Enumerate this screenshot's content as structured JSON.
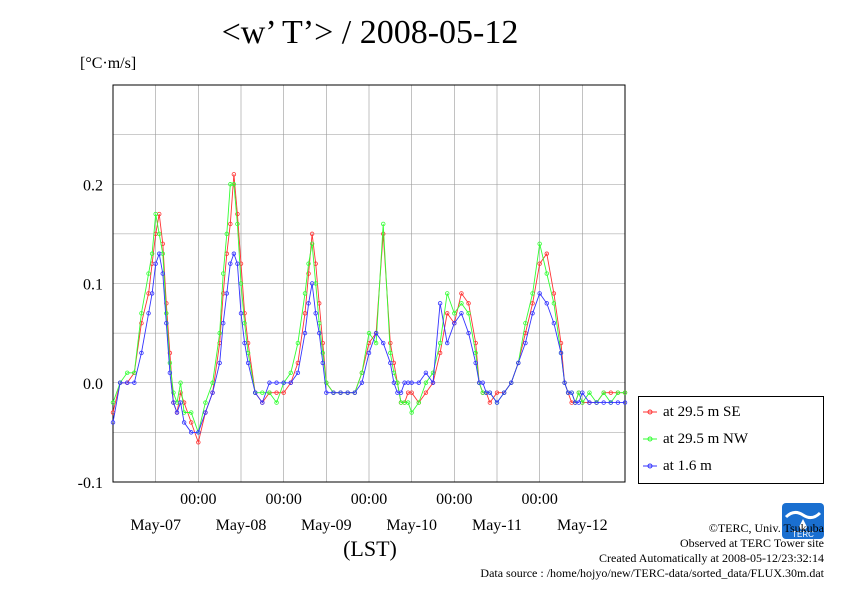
{
  "title": "<w’ T’> / 2008-05-12",
  "unit_label": "[°C·m/s]",
  "xlabel": "(LST)",
  "colors": {
    "se": "#ff3333",
    "nw": "#33ff33",
    "low": "#3333ff",
    "grid": "#999999"
  },
  "legend": [
    {
      "key": "se",
      "label": "at 29.5 m SE"
    },
    {
      "key": "nw",
      "label": "at 29.5 m NW"
    },
    {
      "key": "low",
      "label": "at 1.6 m"
    }
  ],
  "credits": {
    "copyright": "©TERC, Univ. Tsukuba",
    "observed": "Observed at TERC Tower site",
    "created": "Created Automatically at 2008-05-12/23:32:14",
    "source": "Data source : /home/hojyo/new/TERC-data/sorted_data/FLUX.30m.dat"
  },
  "logo_text": "TERC",
  "chart_data": {
    "type": "line",
    "ylim": [
      -0.1,
      0.3
    ],
    "yticks": [
      -0.1,
      0.0,
      0.1,
      0.2
    ],
    "ytick_labels": [
      "-0.1",
      "0.0",
      "0.1",
      "0.2"
    ],
    "xlim_hours": [
      0,
      144
    ],
    "x_tick_labels": [
      "00:00",
      "00:00",
      "00:00",
      "00:00",
      "00:00"
    ],
    "x_date_labels": [
      "May-07",
      "May-08",
      "May-09",
      "May-10",
      "May-11",
      "May-12"
    ],
    "series": [
      {
        "name": "at 29.5 m SE",
        "key": "se",
        "x": [
          0,
          2,
          4,
          6,
          8,
          10,
          11,
          12,
          13,
          14,
          15,
          16,
          17,
          18,
          19,
          20,
          22,
          24,
          26,
          28,
          30,
          31,
          32,
          33,
          34,
          35,
          36,
          37,
          38,
          40,
          42,
          44,
          46,
          48,
          50,
          52,
          54,
          55,
          56,
          57,
          58,
          59,
          60,
          62,
          64,
          66,
          68,
          70,
          72,
          74,
          76,
          78,
          79,
          80,
          81,
          82,
          83,
          84,
          86,
          88,
          90,
          92,
          94,
          96,
          98,
          100,
          102,
          103,
          104,
          105,
          106,
          108,
          110,
          112,
          114,
          116,
          118,
          120,
          122,
          124,
          126,
          127,
          128,
          129,
          130,
          131,
          132,
          134,
          136,
          138,
          140,
          142,
          144
        ],
        "y": [
          -0.03,
          0.0,
          0.0,
          0.01,
          0.06,
          0.09,
          0.12,
          0.15,
          0.17,
          0.14,
          0.08,
          0.03,
          -0.02,
          -0.03,
          -0.01,
          -0.02,
          -0.04,
          -0.06,
          -0.03,
          -0.01,
          0.04,
          0.09,
          0.13,
          0.16,
          0.21,
          0.17,
          0.12,
          0.07,
          0.04,
          -0.01,
          -0.02,
          -0.01,
          -0.01,
          -0.01,
          0.0,
          0.02,
          0.07,
          0.11,
          0.15,
          0.12,
          0.08,
          0.04,
          0.0,
          -0.01,
          -0.01,
          -0.01,
          -0.01,
          0.01,
          0.04,
          0.05,
          0.15,
          0.04,
          0.02,
          0.0,
          -0.02,
          -0.02,
          -0.01,
          -0.01,
          -0.02,
          -0.01,
          0.0,
          0.03,
          0.07,
          0.06,
          0.09,
          0.08,
          0.04,
          0.0,
          -0.01,
          -0.01,
          -0.02,
          -0.01,
          -0.01,
          0.0,
          0.02,
          0.05,
          0.08,
          0.12,
          0.13,
          0.09,
          0.04,
          0.0,
          -0.01,
          -0.02,
          -0.02,
          -0.01,
          -0.02,
          -0.02,
          -0.02,
          -0.01,
          -0.01,
          -0.01,
          -0.01
        ]
      },
      {
        "name": "at 29.5 m NW",
        "key": "nw",
        "x": [
          0,
          2,
          4,
          6,
          8,
          10,
          11,
          12,
          13,
          14,
          15,
          16,
          17,
          18,
          19,
          20,
          22,
          24,
          26,
          28,
          30,
          31,
          32,
          33,
          34,
          35,
          36,
          37,
          38,
          40,
          42,
          44,
          46,
          48,
          50,
          52,
          54,
          55,
          56,
          57,
          58,
          59,
          60,
          62,
          64,
          66,
          68,
          70,
          72,
          74,
          76,
          78,
          79,
          80,
          81,
          82,
          83,
          84,
          86,
          88,
          90,
          92,
          94,
          96,
          98,
          100,
          102,
          103,
          104,
          105,
          106,
          108,
          110,
          112,
          114,
          116,
          118,
          120,
          122,
          124,
          126,
          127,
          128,
          129,
          130,
          131,
          132,
          134,
          136,
          138,
          140,
          142,
          144
        ],
        "y": [
          -0.02,
          0.0,
          0.01,
          0.01,
          0.07,
          0.11,
          0.13,
          0.17,
          0.15,
          0.13,
          0.07,
          0.02,
          -0.01,
          -0.02,
          0.0,
          -0.03,
          -0.03,
          -0.05,
          -0.02,
          0.0,
          0.05,
          0.11,
          0.15,
          0.2,
          0.2,
          0.16,
          0.1,
          0.06,
          0.03,
          -0.01,
          -0.01,
          -0.01,
          -0.02,
          0.0,
          0.01,
          0.04,
          0.09,
          0.12,
          0.14,
          0.1,
          0.06,
          0.03,
          0.0,
          -0.01,
          -0.01,
          -0.01,
          -0.01,
          0.01,
          0.05,
          0.04,
          0.16,
          0.03,
          0.01,
          0.0,
          -0.02,
          -0.02,
          -0.02,
          -0.03,
          -0.02,
          0.0,
          0.01,
          0.04,
          0.09,
          0.07,
          0.08,
          0.07,
          0.03,
          0.0,
          -0.01,
          -0.01,
          -0.01,
          -0.02,
          -0.01,
          0.0,
          0.02,
          0.06,
          0.09,
          0.14,
          0.11,
          0.08,
          0.03,
          0.0,
          -0.01,
          -0.01,
          -0.02,
          -0.01,
          -0.02,
          -0.01,
          -0.02,
          -0.01,
          -0.02,
          -0.01,
          -0.01
        ]
      },
      {
        "name": "at 1.6 m",
        "key": "low",
        "x": [
          0,
          2,
          4,
          6,
          8,
          10,
          11,
          12,
          13,
          14,
          15,
          16,
          17,
          18,
          19,
          20,
          22,
          24,
          26,
          28,
          30,
          31,
          32,
          33,
          34,
          35,
          36,
          37,
          38,
          40,
          42,
          44,
          46,
          48,
          50,
          52,
          54,
          55,
          56,
          57,
          58,
          59,
          60,
          62,
          64,
          66,
          68,
          70,
          72,
          74,
          76,
          78,
          79,
          80,
          81,
          82,
          83,
          84,
          86,
          88,
          90,
          92,
          94,
          96,
          98,
          100,
          102,
          103,
          104,
          105,
          106,
          108,
          110,
          112,
          114,
          116,
          118,
          120,
          122,
          124,
          126,
          127,
          128,
          129,
          130,
          131,
          132,
          134,
          136,
          138,
          140,
          142,
          144
        ],
        "y": [
          -0.04,
          0.0,
          0.0,
          0.0,
          0.03,
          0.07,
          0.09,
          0.12,
          0.13,
          0.11,
          0.06,
          0.01,
          -0.02,
          -0.03,
          -0.02,
          -0.04,
          -0.05,
          -0.05,
          -0.03,
          -0.01,
          0.02,
          0.06,
          0.09,
          0.12,
          0.13,
          0.12,
          0.07,
          0.04,
          0.02,
          -0.01,
          -0.02,
          0.0,
          0.0,
          0.0,
          0.0,
          0.01,
          0.05,
          0.08,
          0.1,
          0.07,
          0.05,
          0.02,
          -0.01,
          -0.01,
          -0.01,
          -0.01,
          -0.01,
          0.0,
          0.03,
          0.05,
          0.04,
          0.02,
          0.0,
          -0.01,
          -0.01,
          0.0,
          0.0,
          0.0,
          0.0,
          0.01,
          0.0,
          0.08,
          0.04,
          0.06,
          0.07,
          0.05,
          0.02,
          0.0,
          0.0,
          -0.01,
          -0.01,
          -0.02,
          -0.01,
          0.0,
          0.02,
          0.04,
          0.07,
          0.09,
          0.08,
          0.06,
          0.03,
          0.0,
          -0.01,
          -0.01,
          -0.02,
          -0.02,
          -0.01,
          -0.02,
          -0.02,
          -0.02,
          -0.02,
          -0.02,
          -0.02
        ]
      }
    ]
  }
}
